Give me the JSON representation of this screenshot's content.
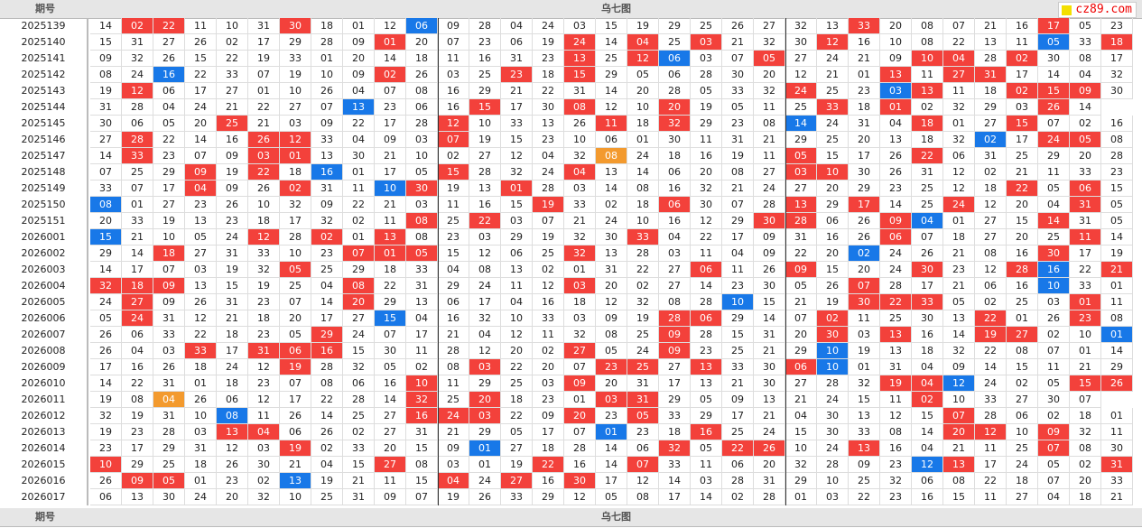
{
  "header": {
    "period_label": "期号",
    "title": "乌七图"
  },
  "watermark": "cz89.com",
  "colors": {
    "red": "#f3413b",
    "blue": "#1878e8",
    "orange": "#f39a2e"
  },
  "rows": [
    {
      "p": "2025139",
      "n": [
        "14",
        "02r",
        "22r",
        "11",
        "10",
        "31",
        "30r",
        "18",
        "01",
        "12",
        "06b",
        "09",
        "28",
        "04",
        "24",
        "03",
        "15",
        "19",
        "29",
        "25",
        "26",
        "27",
        "32",
        "13",
        "33r",
        "20",
        "08",
        "07",
        "21",
        "16",
        "17r",
        "05",
        "23"
      ]
    },
    {
      "p": "2025140",
      "n": [
        "15",
        "31",
        "27",
        "26",
        "02",
        "17",
        "29",
        "28",
        "09",
        "01r",
        "20",
        "07",
        "23",
        "06",
        "19",
        "24r",
        "14",
        "04r",
        "25",
        "03r",
        "21",
        "32",
        "30",
        "12r",
        "16",
        "10",
        "08",
        "22",
        "13",
        "11",
        "05b",
        "33",
        "18r"
      ]
    },
    {
      "p": "2025141",
      "n": [
        "09",
        "32",
        "26",
        "15",
        "22",
        "19",
        "33",
        "01",
        "20",
        "14",
        "18",
        "11",
        "16",
        "31",
        "23",
        "13r",
        "25",
        "12r",
        "06b",
        "03",
        "07",
        "05r",
        "27",
        "24",
        "21",
        "09",
        "10r",
        "04r",
        "28",
        "02r",
        "30",
        "08",
        "17"
      ]
    },
    {
      "p": "2025142",
      "n": [
        "08",
        "24",
        "16b",
        "22",
        "33",
        "07",
        "19",
        "10",
        "09",
        "02r",
        "26",
        "03",
        "25",
        "23r",
        "18",
        "15r",
        "29",
        "05",
        "06",
        "28",
        "30",
        "20",
        "12",
        "21",
        "01",
        "13r",
        "11",
        "27r",
        "31r",
        "17",
        "14",
        "04",
        "32"
      ]
    },
    {
      "p": "2025143",
      "n": [
        "19",
        "12r",
        "06",
        "17",
        "27",
        "01",
        "10",
        "26",
        "04",
        "07",
        "08",
        "16",
        "29",
        "21",
        "22",
        "31",
        "14",
        "20",
        "28",
        "05",
        "33",
        "32",
        "24r",
        "25",
        "23",
        "03b",
        "13r",
        "11",
        "18",
        "02r",
        "15r",
        "09r",
        "30"
      ]
    },
    {
      "p": "2025144",
      "n": [
        "31",
        "28",
        "04",
        "24",
        "21",
        "22",
        "27",
        "07",
        "13b",
        "23",
        "06",
        "16",
        "15r",
        "17",
        "30",
        "08r",
        "12",
        "10",
        "20r",
        "19",
        "05",
        "11",
        "25",
        "33r",
        "18",
        "01r",
        "02",
        "32",
        "29",
        "03",
        "26r",
        "14"
      ]
    },
    {
      "p": "2025145",
      "n": [
        "30",
        "06",
        "05",
        "20",
        "25r",
        "21",
        "03",
        "09",
        "22",
        "17",
        "28",
        "12r",
        "10",
        "33",
        "13",
        "26",
        "11r",
        "18",
        "32r",
        "29",
        "23",
        "08",
        "14b",
        "24",
        "31",
        "04",
        "18r",
        "01",
        "27",
        "15r",
        "07",
        "02",
        "16"
      ]
    },
    {
      "p": "2025146",
      "n": [
        "27",
        "28r",
        "22",
        "14",
        "16",
        "26r",
        "12r",
        "33",
        "04",
        "09",
        "03",
        "07r",
        "19",
        "15",
        "23",
        "10",
        "06",
        "01",
        "30",
        "11",
        "31",
        "21",
        "29",
        "25",
        "20",
        "13",
        "18",
        "32",
        "02b",
        "17",
        "24r",
        "05r",
        "08"
      ]
    },
    {
      "p": "2025147",
      "n": [
        "14",
        "33r",
        "23",
        "07",
        "09",
        "03r",
        "01r",
        "13",
        "30",
        "21",
        "10",
        "02",
        "27",
        "12",
        "04",
        "32",
        "08o",
        "24",
        "18",
        "16",
        "19",
        "11",
        "05r",
        "15",
        "17",
        "26",
        "22r",
        "06",
        "31",
        "25",
        "29",
        "20",
        "28"
      ]
    },
    {
      "p": "2025148",
      "n": [
        "07",
        "25",
        "29",
        "09r",
        "19",
        "22r",
        "18",
        "16b",
        "01",
        "17",
        "05",
        "15r",
        "28",
        "32",
        "24",
        "04r",
        "13",
        "14",
        "06",
        "20",
        "08",
        "27",
        "03r",
        "10r",
        "30",
        "26",
        "31",
        "12",
        "02",
        "21",
        "11",
        "33",
        "23"
      ]
    },
    {
      "p": "2025149",
      "n": [
        "33",
        "07",
        "17",
        "04r",
        "09",
        "26",
        "02r",
        "31",
        "11",
        "10b",
        "30r",
        "19",
        "13",
        "01r",
        "28",
        "03",
        "14",
        "08",
        "16",
        "32",
        "21",
        "24",
        "27",
        "20",
        "29",
        "23",
        "25",
        "12",
        "18",
        "22r",
        "05",
        "06r",
        "15"
      ]
    },
    {
      "p": "2025150",
      "n": [
        "08b",
        "01",
        "27",
        "23",
        "26",
        "10",
        "32",
        "09",
        "22",
        "21",
        "03",
        "11",
        "16",
        "15",
        "19r",
        "33",
        "02",
        "18",
        "06r",
        "30",
        "07",
        "28",
        "13r",
        "29",
        "17r",
        "14",
        "25",
        "24r",
        "12",
        "20",
        "04",
        "31r",
        "05"
      ]
    },
    {
      "p": "2025151",
      "n": [
        "20",
        "33",
        "19",
        "13",
        "23",
        "18",
        "17",
        "32",
        "02",
        "11",
        "08r",
        "25",
        "22r",
        "03",
        "07",
        "21",
        "24",
        "10",
        "16",
        "12",
        "29",
        "30r",
        "28r",
        "06",
        "26",
        "09r",
        "04b",
        "01",
        "27",
        "15",
        "14r",
        "31",
        "05"
      ]
    },
    {
      "p": "2026001",
      "n": [
        "15b",
        "21",
        "10",
        "05",
        "24",
        "12r",
        "28",
        "02r",
        "01",
        "13r",
        "08",
        "23",
        "03",
        "29",
        "19",
        "32",
        "30",
        "33r",
        "04",
        "22",
        "17",
        "09",
        "31",
        "16",
        "26",
        "06r",
        "07",
        "18",
        "27",
        "20",
        "25",
        "11r",
        "14"
      ]
    },
    {
      "p": "2026002",
      "n": [
        "29",
        "14",
        "18r",
        "27",
        "31",
        "33",
        "10",
        "23",
        "07r",
        "01r",
        "05r",
        "15",
        "12",
        "06",
        "25",
        "32r",
        "13",
        "28",
        "03",
        "11",
        "04",
        "09",
        "22",
        "20",
        "02b",
        "24",
        "26",
        "21",
        "08",
        "16",
        "30r",
        "17",
        "19"
      ]
    },
    {
      "p": "2026003",
      "n": [
        "14",
        "17",
        "07",
        "03",
        "19",
        "32",
        "05r",
        "25",
        "29",
        "18",
        "33",
        "04",
        "08",
        "13",
        "02",
        "01",
        "31",
        "22",
        "27",
        "06r",
        "11",
        "26",
        "09r",
        "15",
        "20",
        "24",
        "30r",
        "23",
        "12",
        "28r",
        "16b",
        "22",
        "21r"
      ]
    },
    {
      "p": "2026004",
      "n": [
        "32r",
        "18r",
        "09r",
        "13",
        "15",
        "19",
        "25",
        "04",
        "08r",
        "22",
        "31",
        "29",
        "24",
        "11",
        "12",
        "03r",
        "20",
        "02",
        "27",
        "14",
        "23",
        "30",
        "05",
        "26",
        "07r",
        "28",
        "17",
        "21",
        "06",
        "16",
        "10b",
        "33",
        "01"
      ]
    },
    {
      "p": "2026005",
      "n": [
        "24",
        "27r",
        "09",
        "26",
        "31",
        "23",
        "07",
        "14",
        "20r",
        "29",
        "13",
        "06",
        "17",
        "04",
        "16",
        "18",
        "12",
        "32",
        "08",
        "28",
        "10b",
        "15",
        "21",
        "19",
        "30r",
        "22r",
        "33r",
        "05",
        "02",
        "25",
        "03",
        "01r",
        "11"
      ]
    },
    {
      "p": "2026006",
      "n": [
        "05",
        "24r",
        "31",
        "12",
        "21",
        "18",
        "20",
        "17",
        "27",
        "15b",
        "04",
        "16",
        "32",
        "10",
        "33",
        "03",
        "09",
        "19",
        "28r",
        "06r",
        "29",
        "14",
        "07",
        "02r",
        "11",
        "25",
        "30",
        "13",
        "22r",
        "01",
        "26",
        "23r",
        "08"
      ]
    },
    {
      "p": "2026007",
      "n": [
        "26",
        "06",
        "33",
        "22",
        "18",
        "23",
        "05",
        "29r",
        "24",
        "07",
        "17",
        "21",
        "04",
        "12",
        "11",
        "32",
        "08",
        "25",
        "09r",
        "28",
        "15",
        "31",
        "20",
        "30r",
        "03",
        "13r",
        "16",
        "14",
        "19r",
        "27r",
        "02",
        "10",
        "01b"
      ]
    },
    {
      "p": "2026008",
      "n": [
        "26",
        "04",
        "03",
        "33r",
        "17",
        "31r",
        "06r",
        "16r",
        "15",
        "30",
        "11",
        "28",
        "12",
        "20",
        "02",
        "27r",
        "05",
        "24",
        "09r",
        "23",
        "25",
        "21",
        "29",
        "10b",
        "19",
        "13",
        "18",
        "32",
        "22",
        "08",
        "07",
        "01",
        "14"
      ]
    },
    {
      "p": "2026009",
      "n": [
        "17",
        "16",
        "26",
        "18",
        "24",
        "12",
        "19r",
        "28",
        "32",
        "05",
        "02",
        "08",
        "03r",
        "22",
        "20",
        "07",
        "23r",
        "25r",
        "27",
        "13r",
        "33",
        "30",
        "06r",
        "10b",
        "01",
        "31",
        "04",
        "09",
        "14",
        "15",
        "11",
        "21",
        "29"
      ]
    },
    {
      "p": "2026010",
      "n": [
        "14",
        "22",
        "31",
        "01",
        "18",
        "23",
        "07",
        "08",
        "06",
        "16",
        "10r",
        "11",
        "29",
        "25",
        "03",
        "09r",
        "20",
        "31",
        "17",
        "13",
        "21",
        "30",
        "27",
        "28",
        "32",
        "19r",
        "04r",
        "12b",
        "24",
        "02",
        "05",
        "15r",
        "26r"
      ]
    },
    {
      "p": "2026011",
      "n": [
        "19",
        "08",
        "04o",
        "26",
        "06",
        "12",
        "17",
        "22",
        "28",
        "14",
        "32r",
        "25",
        "20r",
        "18",
        "23",
        "01",
        "03r",
        "31r",
        "29",
        "05",
        "09",
        "13",
        "21",
        "24",
        "15",
        "11",
        "02r",
        "10",
        "33",
        "27",
        "30",
        "07"
      ]
    },
    {
      "p": "2026012",
      "n": [
        "32",
        "19",
        "31",
        "10",
        "08b",
        "11",
        "26",
        "14",
        "25",
        "27",
        "16r",
        "24r",
        "03r",
        "22",
        "09",
        "20r",
        "23",
        "05r",
        "33",
        "29",
        "17",
        "21",
        "04",
        "30",
        "13",
        "12",
        "15",
        "07r",
        "28",
        "06",
        "02",
        "18",
        "01"
      ]
    },
    {
      "p": "2026013",
      "n": [
        "19",
        "23",
        "28",
        "03",
        "13r",
        "04r",
        "06",
        "26",
        "02",
        "27",
        "31",
        "21",
        "29",
        "05",
        "17",
        "07",
        "01b",
        "23",
        "18",
        "16r",
        "25",
        "24",
        "15",
        "30",
        "33",
        "08",
        "14",
        "20r",
        "12r",
        "10",
        "09r",
        "32",
        "11"
      ]
    },
    {
      "p": "2026014",
      "n": [
        "23",
        "17",
        "29",
        "31",
        "12",
        "03",
        "19r",
        "02",
        "33",
        "20",
        "15",
        "09",
        "01b",
        "27",
        "18",
        "28",
        "14",
        "06",
        "32r",
        "05",
        "22r",
        "26r",
        "10",
        "24",
        "13r",
        "16",
        "04",
        "21",
        "11",
        "25",
        "07r",
        "08",
        "30"
      ]
    },
    {
      "p": "2026015",
      "n": [
        "10r",
        "29",
        "25",
        "18",
        "26",
        "30",
        "21",
        "04",
        "15",
        "27r",
        "08",
        "03",
        "01",
        "19",
        "22r",
        "16",
        "14",
        "07r",
        "33",
        "11",
        "06",
        "20",
        "32",
        "28",
        "09",
        "23",
        "12b",
        "13r",
        "17",
        "24",
        "05",
        "02",
        "31r"
      ]
    },
    {
      "p": "2026016",
      "n": [
        "26",
        "09r",
        "05r",
        "01",
        "23",
        "02",
        "13b",
        "19",
        "21",
        "11",
        "15",
        "04r",
        "24",
        "27r",
        "16",
        "30r",
        "17",
        "12",
        "14",
        "03",
        "28",
        "31",
        "29",
        "10",
        "25",
        "32",
        "06",
        "08",
        "22",
        "18",
        "07",
        "20",
        "33"
      ]
    },
    {
      "p": "2026017",
      "n": [
        "06",
        "13",
        "30",
        "24",
        "20",
        "32",
        "10",
        "25",
        "31",
        "09",
        "07",
        "19",
        "26",
        "33",
        "29",
        "12",
        "05",
        "08",
        "17",
        "14",
        "02",
        "28",
        "01",
        "03",
        "22",
        "23",
        "16",
        "15",
        "11",
        "27",
        "04",
        "18",
        "21"
      ]
    }
  ]
}
